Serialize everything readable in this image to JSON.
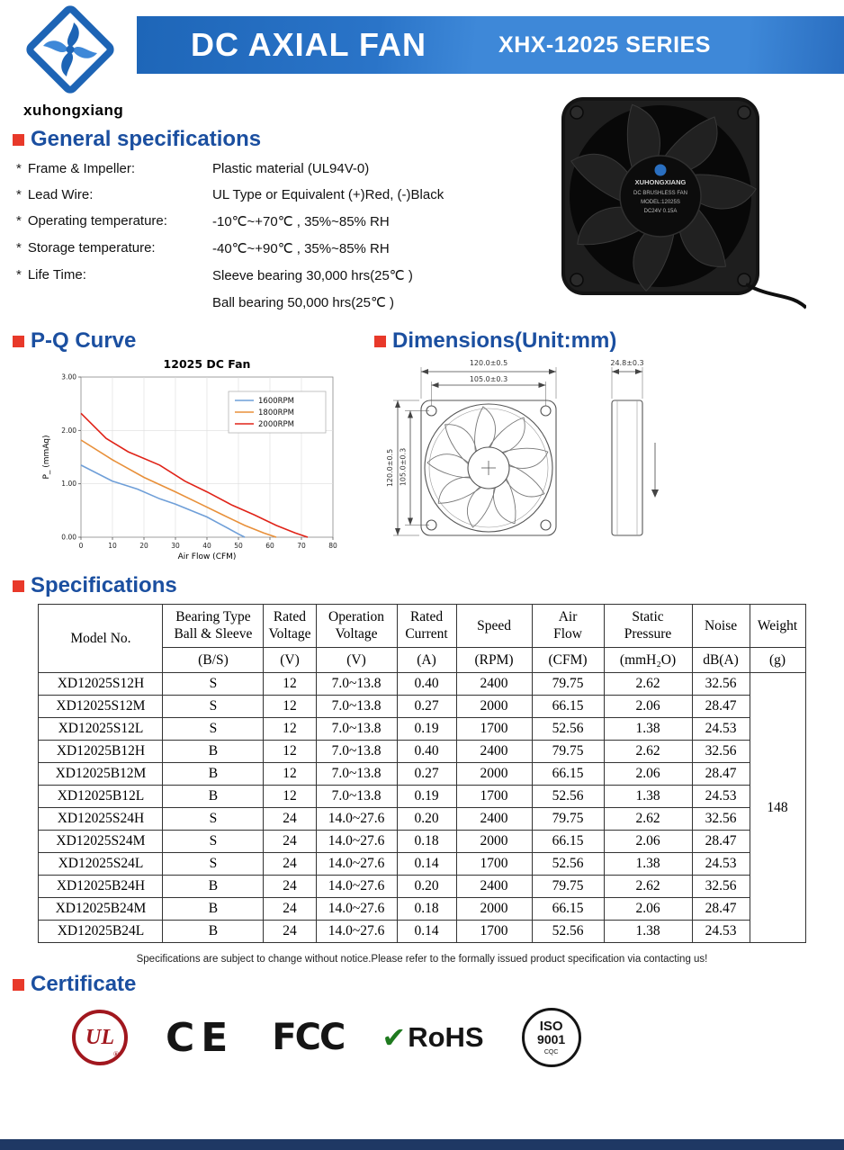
{
  "brand": {
    "logo_text": "xuhongxiang",
    "title": "DC AXIAL FAN",
    "series": "XHX-12025 SERIES"
  },
  "general": {
    "heading": "General specifications",
    "bullet": "*",
    "items": [
      {
        "label": "Frame & Impeller:",
        "value": "Plastic material (UL94V-0)"
      },
      {
        "label": "Lead Wire:",
        "value": "UL Type or Equivalent (+)Red,  (-)Black"
      },
      {
        "label": "Operating temperature:",
        "value": "-10℃~+70℃ ,  35%~85% RH"
      },
      {
        "label": "Storage temperature:",
        "value": "-40℃~+90℃ ,  35%~85% RH"
      },
      {
        "label": "Life Time:",
        "value": "Sleeve bearing 30,000 hrs(25℃ )"
      },
      {
        "label": "",
        "value": "Ball bearing 50,000 hrs(25℃ )"
      }
    ]
  },
  "pq_heading": "P-Q Curve",
  "chart_data": {
    "type": "line",
    "title": "12025 DC Fan",
    "xlabel": "Air Flow (CFM)",
    "ylabel": "P_ (mmAq)",
    "xlim": [
      0,
      80
    ],
    "ylim": [
      0,
      3.0
    ],
    "xticks": [
      0,
      10,
      20,
      30,
      40,
      50,
      60,
      70,
      80
    ],
    "yticks": [
      "0.00",
      "1.00",
      "2.00",
      "3.00"
    ],
    "grid": true,
    "legend_position": "top-right",
    "series": [
      {
        "name": "1600RPM",
        "color": "#6f9fd8",
        "points": [
          [
            0,
            1.35
          ],
          [
            10,
            1.05
          ],
          [
            18,
            0.9
          ],
          [
            25,
            0.72
          ],
          [
            30,
            0.62
          ],
          [
            40,
            0.38
          ],
          [
            45,
            0.22
          ],
          [
            50,
            0.06
          ],
          [
            52,
            0.0
          ]
        ]
      },
      {
        "name": "1800RPM",
        "color": "#e8903a",
        "points": [
          [
            0,
            1.82
          ],
          [
            10,
            1.45
          ],
          [
            20,
            1.12
          ],
          [
            30,
            0.85
          ],
          [
            38,
            0.62
          ],
          [
            45,
            0.42
          ],
          [
            52,
            0.22
          ],
          [
            58,
            0.08
          ],
          [
            62,
            0.0
          ]
        ]
      },
      {
        "name": "2000RPM",
        "color": "#e02318",
        "points": [
          [
            0,
            2.32
          ],
          [
            8,
            1.85
          ],
          [
            15,
            1.6
          ],
          [
            25,
            1.35
          ],
          [
            33,
            1.05
          ],
          [
            40,
            0.85
          ],
          [
            48,
            0.6
          ],
          [
            55,
            0.42
          ],
          [
            62,
            0.22
          ],
          [
            68,
            0.08
          ],
          [
            72,
            0.0
          ]
        ]
      }
    ]
  },
  "dimensions": {
    "heading": "Dimensions(Unit:mm)",
    "front_width": "120.0±0.5",
    "hole_pitch_width": "105.0±0.3",
    "front_height": "120.0±0.5",
    "hole_pitch_height": "105.0±0.3",
    "depth": "24.8±0.3"
  },
  "fan_photo": {
    "brand": "XUHONGXIANG",
    "line1": "DC BRUSHLESS FAN",
    "line2": "MODEL:12025S",
    "line3": "DC24V 0.15A"
  },
  "specs_table": {
    "heading": "Specifications",
    "header_row1": [
      "Model No.",
      "Bearing Type\nBall & Sleeve",
      "Rated\nVoltage",
      "Operation\nVoltage",
      "Rated\nCurrent",
      "Speed",
      "Air\nFlow",
      "Static\nPressure",
      "Noise",
      "Weight"
    ],
    "header_row2": [
      "(B/S)",
      "(V)",
      "(V)",
      "(A)",
      "(RPM)",
      "(CFM)",
      "(mmH₂O)",
      "dB(A)",
      "(g)"
    ],
    "rows": [
      [
        "XD12025S12H",
        "S",
        "12",
        "7.0~13.8",
        "0.40",
        "2400",
        "79.75",
        "2.62",
        "32.56"
      ],
      [
        "XD12025S12M",
        "S",
        "12",
        "7.0~13.8",
        "0.27",
        "2000",
        "66.15",
        "2.06",
        "28.47"
      ],
      [
        "XD12025S12L",
        "S",
        "12",
        "7.0~13.8",
        "0.19",
        "1700",
        "52.56",
        "1.38",
        "24.53"
      ],
      [
        "XD12025B12H",
        "B",
        "12",
        "7.0~13.8",
        "0.40",
        "2400",
        "79.75",
        "2.62",
        "32.56"
      ],
      [
        "XD12025B12M",
        "B",
        "12",
        "7.0~13.8",
        "0.27",
        "2000",
        "66.15",
        "2.06",
        "28.47"
      ],
      [
        "XD12025B12L",
        "B",
        "12",
        "7.0~13.8",
        "0.19",
        "1700",
        "52.56",
        "1.38",
        "24.53"
      ],
      [
        "XD12025S24H",
        "S",
        "24",
        "14.0~27.6",
        "0.20",
        "2400",
        "79.75",
        "2.62",
        "32.56"
      ],
      [
        "XD12025S24M",
        "S",
        "24",
        "14.0~27.6",
        "0.18",
        "2000",
        "66.15",
        "2.06",
        "28.47"
      ],
      [
        "XD12025S24L",
        "S",
        "24",
        "14.0~27.6",
        "0.14",
        "1700",
        "52.56",
        "1.38",
        "24.53"
      ],
      [
        "XD12025B24H",
        "B",
        "24",
        "14.0~27.6",
        "0.20",
        "2400",
        "79.75",
        "2.62",
        "32.56"
      ],
      [
        "XD12025B24M",
        "B",
        "24",
        "14.0~27.6",
        "0.18",
        "2000",
        "66.15",
        "2.06",
        "28.47"
      ],
      [
        "XD12025B24L",
        "B",
        "24",
        "14.0~27.6",
        "0.14",
        "1700",
        "52.56",
        "1.38",
        "24.53"
      ]
    ],
    "weight_value": "148",
    "note": "Specifications are subject to change without notice.Please refer to the formally issued product specification via contacting us!"
  },
  "certificate": {
    "heading": "Certificate",
    "ul_text": "UL",
    "ul_reg": "®",
    "ce_text": "CE",
    "fcc_text": "FCC",
    "rohs_check": "✔",
    "rohs_text": "RoHS",
    "iso_line1": "ISO",
    "iso_line2": "9001",
    "iso_sub": "CQC"
  }
}
